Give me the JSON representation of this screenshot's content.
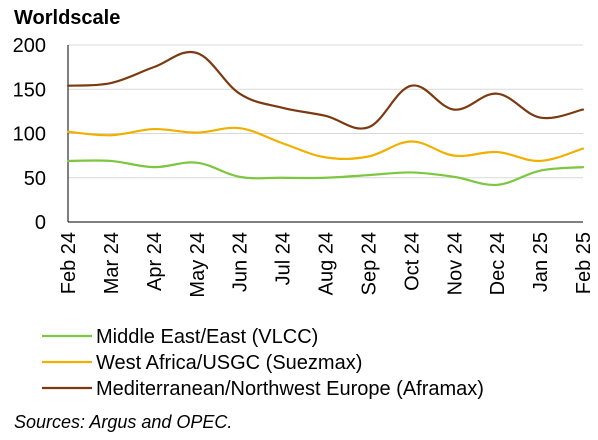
{
  "chart_data": {
    "type": "line",
    "title": "",
    "ylabel": "Worldscale",
    "xlabel": "",
    "categories": [
      "Feb 24",
      "Mar 24",
      "Apr 24",
      "May 24",
      "Jun 24",
      "Jul 24",
      "Aug 24",
      "Sep 24",
      "Oct 24",
      "Nov 24",
      "Dec 24",
      "Jan 25",
      "Feb 25"
    ],
    "ylim": [
      0,
      200
    ],
    "yticks": [
      0,
      50,
      100,
      150,
      200
    ],
    "grid": "horizontal",
    "legend_position": "bottom",
    "series": [
      {
        "name": "Middle East/East (VLCC)",
        "color": "#7dc63f",
        "values": [
          69,
          69,
          62,
          67,
          51,
          50,
          50,
          53,
          56,
          51,
          42,
          58,
          62
        ]
      },
      {
        "name": "West Africa/USGC (Suezmax)",
        "color": "#f0b000",
        "values": [
          102,
          98,
          105,
          101,
          106,
          89,
          73,
          74,
          91,
          75,
          79,
          69,
          83
        ]
      },
      {
        "name": "Mediterranean/Northwest Europe (Aframax)",
        "color": "#7b3a10",
        "values": [
          154,
          157,
          175,
          191,
          145,
          129,
          120,
          107,
          154,
          127,
          145,
          118,
          127
        ]
      }
    ],
    "source_note": "Sources: Argus and OPEC."
  }
}
